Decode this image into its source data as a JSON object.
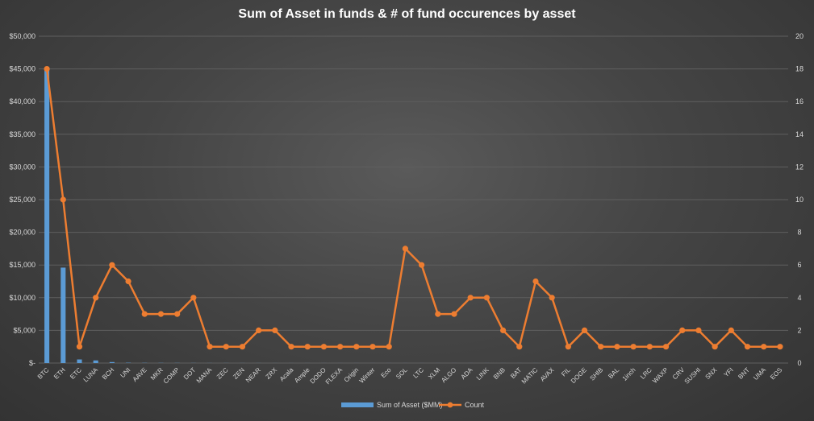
{
  "chart_data": {
    "type": "bar",
    "title": "Sum of Asset in funds & # of fund occurences by asset",
    "categories": [
      "BTC",
      "ETH",
      "ETC",
      "LUNA",
      "BCH",
      "UNI",
      "AAVE",
      "MKR",
      "COMP",
      "DOT",
      "MANA",
      "ZEC",
      "ZEN",
      "NEAR",
      "ZRX",
      "Acala",
      "Ample",
      "DODO",
      "FLEXA",
      "Origin",
      "Winter",
      "Eco",
      "SOL",
      "LTC",
      "XLM",
      "ALGO",
      "ADA",
      "LINK",
      "BNB",
      "BAT",
      "MATIC",
      "AVAX",
      "FIL",
      "DOGE",
      "SHIB",
      "BAL",
      "1inch",
      "LRC",
      "WAXP",
      "CRV",
      "SUSHI",
      "SNX",
      "YFI",
      "BNT",
      "UMA",
      "EOS"
    ],
    "series": [
      {
        "name": "Sum of Asset ($MM)",
        "type": "bar",
        "axis": "left",
        "color": "#5b9bd5",
        "values": [
          45000,
          14600,
          550,
          400,
          150,
          50,
          30,
          25,
          20,
          15,
          10,
          10,
          8,
          8,
          5,
          5,
          5,
          5,
          5,
          5,
          5,
          5,
          5,
          5,
          5,
          5,
          5,
          5,
          5,
          5,
          5,
          5,
          5,
          5,
          5,
          5,
          5,
          5,
          5,
          5,
          5,
          5,
          5,
          5,
          5,
          5
        ]
      },
      {
        "name": "Count",
        "type": "line",
        "axis": "right",
        "color": "#ed7d31",
        "values": [
          18,
          10,
          1,
          4,
          6,
          5,
          3,
          3,
          3,
          4,
          1,
          1,
          1,
          2,
          2,
          1,
          1,
          1,
          1,
          1,
          1,
          1,
          7,
          6,
          3,
          3,
          4,
          4,
          2,
          1,
          5,
          4,
          1,
          2,
          1,
          1,
          1,
          1,
          1,
          2,
          2,
          1,
          2,
          1,
          1,
          1
        ]
      }
    ],
    "y_left": {
      "ylim": [
        0,
        50000
      ],
      "ticks": [
        0,
        5000,
        10000,
        15000,
        20000,
        25000,
        30000,
        35000,
        40000,
        45000,
        50000
      ],
      "tick_labels": [
        "$-",
        "$5,000",
        "$10,000",
        "$15,000",
        "$20,000",
        "$25,000",
        "$30,000",
        "$35,000",
        "$40,000",
        "$45,000",
        "$50,000"
      ]
    },
    "y_right": {
      "ylim": [
        0,
        20
      ],
      "ticks": [
        0,
        2,
        4,
        6,
        8,
        10,
        12,
        14,
        16,
        18,
        20
      ],
      "tick_labels": [
        "0",
        "2",
        "4",
        "6",
        "8",
        "10",
        "12",
        "14",
        "16",
        "18",
        "20"
      ]
    },
    "grid": true,
    "legend": "bottom"
  }
}
